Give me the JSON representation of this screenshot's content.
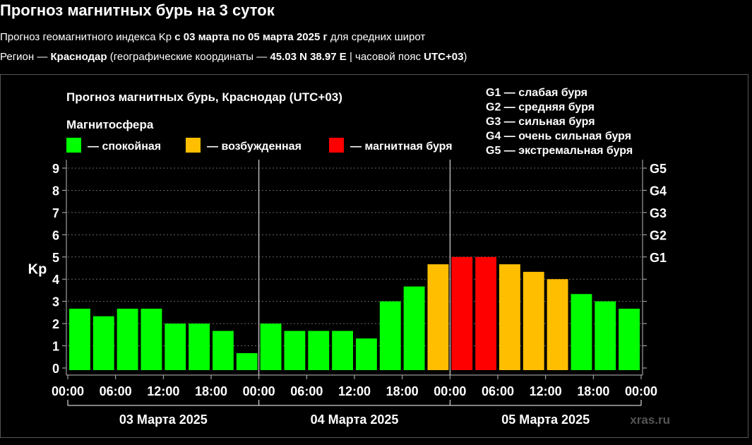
{
  "page": {
    "title": "Прогноз магнитных бурь на 3 суток",
    "line1": {
      "prefix": "Прогноз геомагнитного индекса Kp ",
      "range": "с 03 марта по 05 марта 2025 г",
      "suffix": " для средних широт"
    },
    "line2": {
      "prefix": "Регион — ",
      "city": "Краснодар",
      "middle": " (географические координаты — ",
      "coords": "45.03 N 38.97 E",
      "tz_prefix": " | часовой пояс ",
      "tz": "UTC+03",
      "suffix": ")"
    }
  },
  "colors": {
    "calm": "#00ff00",
    "excited": "#ffbf00",
    "storm": "#ff0000",
    "background": "#000000"
  },
  "chart_data": {
    "type": "bar",
    "title": "Прогноз магнитных бурь, Краснодар (UTC+03)",
    "legend_title": "Магнитосфера",
    "legend": [
      {
        "key": "calm",
        "label": "— спокойная"
      },
      {
        "key": "excited",
        "label": "— возбужденная"
      },
      {
        "key": "storm",
        "label": "— магнитная буря"
      }
    ],
    "g_scale_legend": [
      "G1 — слабая буря",
      "G2 — средняя буря",
      "G3 — сильная буря",
      "G4 — очень сильная буря",
      "G5 — экстремальная буря"
    ],
    "ylabel": "Kp",
    "ylim": [
      0,
      9
    ],
    "yticks": [
      "0",
      "1",
      "2",
      "3",
      "4",
      "5",
      "6",
      "7",
      "8",
      "9"
    ],
    "right_ticks": [
      {
        "value": 5,
        "label": "G1"
      },
      {
        "value": 6,
        "label": "G2"
      },
      {
        "value": 7,
        "label": "G3"
      },
      {
        "value": 8,
        "label": "G4"
      },
      {
        "value": 9,
        "label": "G5"
      }
    ],
    "xticks": [
      "00:00",
      "06:00",
      "12:00",
      "18:00",
      "00:00",
      "06:00",
      "12:00",
      "18:00",
      "00:00",
      "06:00",
      "12:00",
      "18:00",
      "00:00"
    ],
    "days": [
      "03 Марта 2025",
      "04 Марта 2025",
      "05 Марта 2025"
    ],
    "interval_hours": 3,
    "values": [
      2.67,
      2.33,
      2.67,
      2.67,
      2.0,
      2.0,
      1.67,
      0.67,
      2.0,
      1.67,
      1.67,
      1.67,
      1.33,
      3.0,
      3.67,
      4.67,
      5.0,
      5.0,
      4.67,
      4.33,
      4.0,
      3.33,
      3.0,
      2.67
    ],
    "levels": [
      "calm",
      "calm",
      "calm",
      "calm",
      "calm",
      "calm",
      "calm",
      "calm",
      "calm",
      "calm",
      "calm",
      "calm",
      "calm",
      "calm",
      "calm",
      "excited",
      "storm",
      "storm",
      "excited",
      "excited",
      "excited",
      "calm",
      "calm",
      "calm"
    ],
    "grid": "dashed horizontal",
    "watermark": "xras.ru"
  }
}
